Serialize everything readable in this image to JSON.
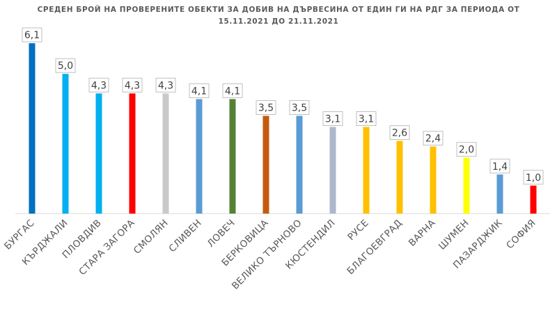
{
  "chart_data": {
    "type": "bar",
    "title": "СРЕДЕН БРОЙ НА ПРОВЕРЕНИТЕ ОБЕКТИ ЗА ДОБИВ НА ДЪРВЕСИНА ОТ ЕДИН ГИ НА РДГ ЗА ПЕРИОДА ОТ 15.11.2021 ДО 21.11.2021",
    "xlabel": "",
    "ylabel": "",
    "ylim": [
      0,
      6.6
    ],
    "grid": false,
    "legend": "none",
    "categories": [
      "БУРГАС",
      "КЪРДЖАЛИ",
      "ПЛОВДИВ",
      "СТАРА ЗАГОРА",
      "СМОЛЯН",
      "СЛИВЕН",
      "ЛОВЕЧ",
      "БЕРКОВИЦА",
      "ВЕЛИКО ТЪРНОВО",
      "КЮСТЕНДИЛ",
      "РУСЕ",
      "БЛАГОЕВГРАД",
      "ВАРНА",
      "ШУМЕН",
      "ПАЗАРДЖИК",
      "СОФИЯ"
    ],
    "values": [
      6.1,
      5.0,
      4.3,
      4.3,
      4.3,
      4.1,
      4.1,
      3.5,
      3.5,
      3.1,
      3.1,
      2.6,
      2.4,
      2.0,
      1.4,
      1.0
    ],
    "value_labels": [
      "6,1",
      "5,0",
      "4,3",
      "4,3",
      "4,3",
      "4,1",
      "4,1",
      "3,5",
      "3,5",
      "3,1",
      "3,1",
      "2,6",
      "2,4",
      "2,0",
      "1,4",
      "1,0"
    ],
    "colors": [
      "#0070C0",
      "#00B0F0",
      "#00B0F0",
      "#FF0000",
      "#C9C9C9",
      "#5B9BD5",
      "#548235",
      "#C55A11",
      "#5B9BD5",
      "#ADB9CA",
      "#FFC000",
      "#FFC000",
      "#FFC000",
      "#FFFF00",
      "#5B9BD5",
      "#FF0000"
    ]
  }
}
